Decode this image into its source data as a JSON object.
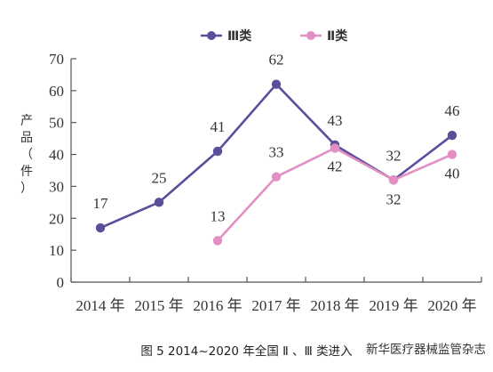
{
  "chart_data": {
    "type": "line",
    "categories": [
      "2014 年",
      "2015 年",
      "2016 年",
      "2017 年",
      "2018 年",
      "2019 年",
      "2020 年"
    ],
    "ylabel": "产品（件）",
    "ylim": [
      0,
      70
    ],
    "yticks": [
      "0",
      "10",
      "20",
      "30",
      "40",
      "50",
      "60",
      "70"
    ],
    "grid": false,
    "legend_position": "top-center",
    "series": [
      {
        "name": "Ⅲ类",
        "color": "#5b4f9c",
        "values": [
          17,
          25,
          41,
          62,
          43,
          32,
          46
        ],
        "labels": [
          "17",
          "25",
          "41",
          "62",
          "43",
          "32",
          "46"
        ]
      },
      {
        "name": "Ⅱ类",
        "color": "#e48fc4",
        "values": [
          null,
          null,
          13,
          33,
          42,
          32,
          40
        ],
        "labels": [
          "",
          "",
          "13",
          "33",
          "42",
          "32",
          "40"
        ]
      }
    ]
  },
  "caption": "图 5   2014~2020 年全国 Ⅱ 、Ⅲ 类进入",
  "watermark": "新华医疗器械监管杂志"
}
